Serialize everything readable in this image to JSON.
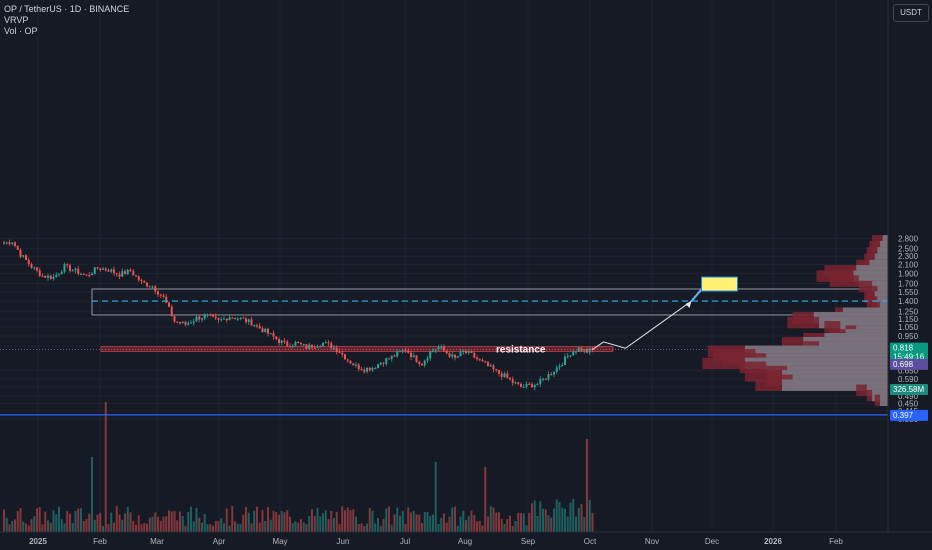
{
  "header": {
    "symbol_line": "OP / TetherUS · 1D · BINANCE",
    "indicator_1": "VRVP",
    "indicator_2": "Vol · OP",
    "currency": "USDT"
  },
  "colors": {
    "background": "#161a25",
    "grid": "#1f2330",
    "up": "#26a69a",
    "down": "#ef5350",
    "zone_fill": "#7f2530",
    "dashed_target": "#29b6f6",
    "support_line": "#2962ff",
    "vp_down": "#7a2530",
    "vp_up": "#787b86",
    "note_fill": "#fff176"
  },
  "price_scale": {
    "labels": [
      "2.800",
      "2.500",
      "2.300",
      "2.100",
      "1.900",
      "1.700",
      "1.550",
      "1.400",
      "1.250",
      "1.150",
      "1.050",
      "0.950",
      "0.850",
      "0.650",
      "0.590",
      "0.540",
      "0.490",
      "0.450",
      "0.415",
      "0.380"
    ],
    "badges": {
      "current_price": "0.818",
      "countdown": "15:49:16",
      "level_698": "0.698",
      "volume": "326.58M",
      "support": "0.397"
    }
  },
  "time_axis": {
    "labels": [
      "2025",
      "Feb",
      "Mar",
      "Apr",
      "May",
      "Jun",
      "Jul",
      "Aug",
      "Sep",
      "Oct",
      "Nov",
      "Dec",
      "2026",
      "Feb"
    ]
  },
  "annotations": {
    "resistance_label": "resistance"
  },
  "chart_data": {
    "type": "candlestick",
    "symbol": "OP / TetherUS",
    "interval": "1D",
    "exchange": "BINANCE",
    "y_axis": {
      "scale": "log",
      "range": [
        0.37,
        2.85
      ],
      "ticks": [
        2.8,
        2.5,
        2.3,
        2.1,
        1.9,
        1.7,
        1.55,
        1.4,
        1.25,
        1.15,
        1.05,
        0.95,
        0.85,
        0.65,
        0.59,
        0.54,
        0.49,
        0.45,
        0.415,
        0.38
      ]
    },
    "last_price": 0.818,
    "close_path": [
      [
        0,
        2.65
      ],
      [
        3,
        2.72
      ],
      [
        6,
        2.35
      ],
      [
        10,
        2.05
      ],
      [
        14,
        1.85
      ],
      [
        18,
        1.82
      ],
      [
        22,
        2.05
      ],
      [
        26,
        1.95
      ],
      [
        30,
        1.85
      ],
      [
        34,
        2.02
      ],
      [
        38,
        1.98
      ],
      [
        42,
        1.88
      ],
      [
        46,
        1.95
      ],
      [
        50,
        1.72
      ],
      [
        54,
        1.65
      ],
      [
        58,
        1.45
      ],
      [
        60,
        1.28
      ],
      [
        62,
        1.12
      ],
      [
        66,
        1.08
      ],
      [
        70,
        1.16
      ],
      [
        74,
        1.18
      ],
      [
        78,
        1.12
      ],
      [
        82,
        1.18
      ],
      [
        86,
        1.15
      ],
      [
        90,
        1.1
      ],
      [
        94,
        1.02
      ],
      [
        97,
        0.96
      ],
      [
        100,
        0.9
      ],
      [
        103,
        0.86
      ],
      [
        106,
        0.88
      ],
      [
        110,
        0.84
      ],
      [
        113,
        0.86
      ],
      [
        116,
        0.88
      ],
      [
        119,
        0.85
      ],
      [
        122,
        0.8
      ],
      [
        125,
        0.73
      ],
      [
        128,
        0.68
      ],
      [
        131,
        0.66
      ],
      [
        134,
        0.67
      ],
      [
        137,
        0.71
      ],
      [
        140,
        0.74
      ],
      [
        143,
        0.78
      ],
      [
        146,
        0.82
      ],
      [
        149,
        0.75
      ],
      [
        152,
        0.7
      ],
      [
        155,
        0.8
      ],
      [
        158,
        0.84
      ],
      [
        161,
        0.79
      ],
      [
        164,
        0.74
      ],
      [
        167,
        0.8
      ],
      [
        170,
        0.77
      ],
      [
        173,
        0.72
      ],
      [
        176,
        0.68
      ],
      [
        179,
        0.64
      ],
      [
        182,
        0.61
      ],
      [
        185,
        0.57
      ],
      [
        188,
        0.54
      ],
      [
        191,
        0.55
      ],
      [
        194,
        0.56
      ],
      [
        197,
        0.6
      ],
      [
        200,
        0.65
      ],
      [
        203,
        0.71
      ],
      [
        206,
        0.79
      ],
      [
        209,
        0.83
      ],
      [
        212,
        0.8
      ],
      [
        214,
        0.818
      ]
    ],
    "volume": {
      "series": "Vol · OP"
    },
    "volume_profile": {
      "name": "VRVP",
      "rows": [
        {
          "price": 2.72,
          "up": 0.2,
          "down": 0.6
        },
        {
          "price": 2.55,
          "up": 0.3,
          "down": 0.7
        },
        {
          "price": 2.38,
          "up": 0.4,
          "down": 0.8
        },
        {
          "price": 2.22,
          "up": 0.5,
          "down": 0.9
        },
        {
          "price": 2.07,
          "up": 0.7,
          "down": 1.2
        },
        {
          "price": 1.95,
          "up": 1.2,
          "down": 2.4
        },
        {
          "price": 1.84,
          "up": 1.3,
          "down": 2.7
        },
        {
          "price": 1.74,
          "up": 1.1,
          "down": 2.2
        },
        {
          "price": 1.64,
          "up": 0.6,
          "down": 1.1
        },
        {
          "price": 1.55,
          "up": 0.4,
          "down": 0.8
        },
        {
          "price": 1.46,
          "up": 0.5,
          "down": 0.9
        },
        {
          "price": 1.38,
          "up": 0.4,
          "down": 0.8
        },
        {
          "price": 1.3,
          "up": 0.3,
          "down": 0.6
        },
        {
          "price": 1.22,
          "up": 1.7,
          "down": 2.0
        },
        {
          "price": 1.16,
          "up": 2.8,
          "down": 3.6
        },
        {
          "price": 1.1,
          "up": 2.6,
          "down": 3.8
        },
        {
          "price": 1.05,
          "up": 1.8,
          "down": 2.4
        },
        {
          "price": 1.0,
          "up": 1.2,
          "down": 1.6
        },
        {
          "price": 0.96,
          "up": 1.6,
          "down": 2.2
        },
        {
          "price": 0.92,
          "up": 2.4,
          "down": 3.2
        },
        {
          "price": 0.88,
          "up": 3.2,
          "down": 4.0
        },
        {
          "price": 0.84,
          "up": 2.6,
          "down": 3.2
        },
        {
          "price": 0.8,
          "up": 5.4,
          "down": 6.8
        },
        {
          "price": 0.77,
          "up": 5.0,
          "down": 6.6
        },
        {
          "price": 0.735,
          "up": 4.6,
          "down": 6.3
        },
        {
          "price": 0.7,
          "up": 5.4,
          "down": 7.0
        },
        {
          "price": 0.67,
          "up": 4.6,
          "down": 5.6
        },
        {
          "price": 0.64,
          "up": 3.8,
          "down": 4.6
        },
        {
          "price": 0.61,
          "up": 4.0,
          "down": 5.4
        },
        {
          "price": 0.58,
          "up": 3.6,
          "down": 4.6
        },
        {
          "price": 0.55,
          "up": 4.0,
          "down": 5.0
        },
        {
          "price": 0.52,
          "up": 0.8,
          "down": 1.2
        },
        {
          "price": 0.49,
          "up": 0.6,
          "down": 0.8
        },
        {
          "price": 0.465,
          "up": 0.3,
          "down": 0.5
        }
      ]
    },
    "zones": [
      {
        "name": "target box",
        "from_price": 1.2,
        "to_price": 1.6
      },
      {
        "name": "resistance",
        "from_price": 0.8,
        "to_price": 0.845
      }
    ],
    "levels": [
      {
        "name": "target",
        "price": 1.4,
        "style": "dashed"
      },
      {
        "name": "support",
        "price": 0.397,
        "style": "solid"
      }
    ],
    "projection": [
      [
        214,
        0.818
      ],
      [
        218,
        0.89
      ],
      [
        226,
        0.83
      ],
      [
        250,
        1.4
      ]
    ],
    "annotations": [
      "resistance"
    ]
  }
}
